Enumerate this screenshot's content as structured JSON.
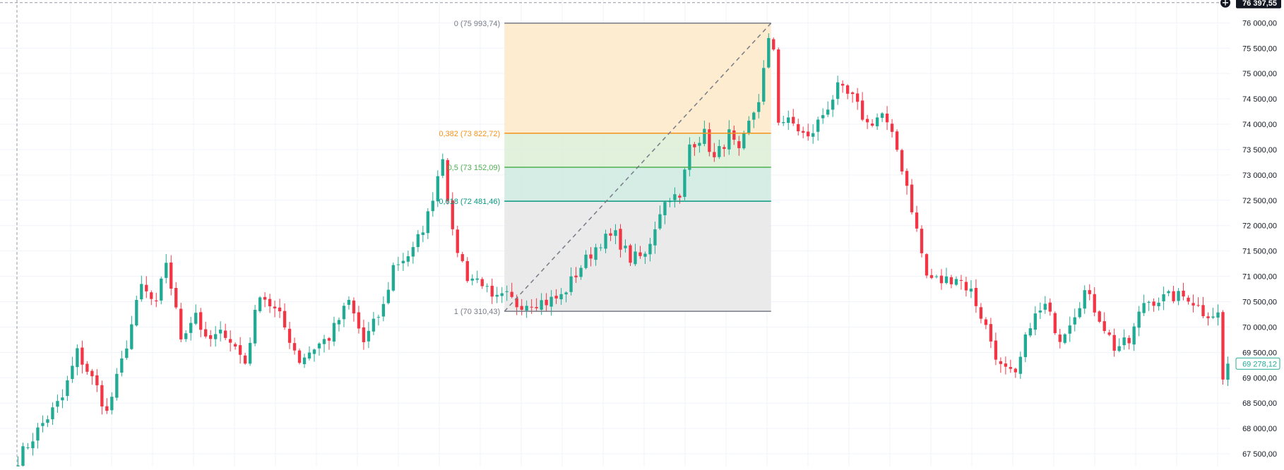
{
  "colors": {
    "up": "#22ab94",
    "down": "#f23645",
    "grid": "#f0f3fa",
    "axis_text": "#131722",
    "fib_0_fill": "#fde9c8",
    "fib_0382_fill": "#dcefd6",
    "fib_05_fill": "#cfeae2",
    "fib_0618_fill": "#e6e6e6",
    "fib_0382_line": "#f7931a",
    "fib_05_line": "#4caf50",
    "fib_0618_line": "#089981",
    "fib_edge_line": "#787b86",
    "crosshair": "#9598a1",
    "current_price_border": "#22ab94",
    "crosshair_label_bg": "#131722"
  },
  "chart_data": {
    "type": "candlestick",
    "y_axis": {
      "range": [
        67250,
        76450
      ],
      "ticks": [
        67500,
        68000,
        68500,
        69000,
        69500,
        70000,
        70500,
        71000,
        71500,
        72000,
        72500,
        73000,
        73500,
        74000,
        74500,
        75000,
        75500,
        76000
      ],
      "tick_labels": [
        "67 500,00",
        "68 000,00",
        "68 500,00",
        "69 000,00",
        "69 500,00",
        "70 000,00",
        "70 500,00",
        "71 000,00",
        "71 500,00",
        "72 000,00",
        "72 500,00",
        "73 000,00",
        "73 500,00",
        "74 000,00",
        "74 500,00",
        "75 000,00",
        "75 500,00",
        "76 000,00"
      ],
      "side": "right",
      "grid": true
    },
    "x_axis": {
      "bars": 246,
      "grid": true,
      "labels": []
    },
    "crosshair": {
      "price": 76397.55,
      "label": "76 397,55"
    },
    "current_price": {
      "price": 69278.12,
      "label": "69 278,12"
    },
    "fibonacci": {
      "start_bar": 99,
      "end_bar": 152,
      "levels": [
        {
          "ratio": 0,
          "price": 75993.74,
          "label": "0 (75 993,74)"
        },
        {
          "ratio": 0.382,
          "price": 73822.72,
          "label": "0,382 (73 822,72)"
        },
        {
          "ratio": 0.5,
          "price": 73152.09,
          "label": "0,5 (73 152,09)"
        },
        {
          "ratio": 0.618,
          "price": 72481.46,
          "label": "0,618 (72 481,46)"
        },
        {
          "ratio": 1,
          "price": 70310.43,
          "label": "1 (70 310,43)"
        }
      ]
    },
    "waypoints": [
      [
        0,
        67400
      ],
      [
        5,
        68100
      ],
      [
        9,
        68600
      ],
      [
        12,
        69500
      ],
      [
        16,
        68800
      ],
      [
        18,
        68300
      ],
      [
        21,
        69300
      ],
      [
        25,
        70800
      ],
      [
        28,
        70400
      ],
      [
        30,
        71300
      ],
      [
        33,
        69800
      ],
      [
        36,
        70300
      ],
      [
        38,
        69700
      ],
      [
        42,
        69900
      ],
      [
        46,
        69300
      ],
      [
        49,
        70700
      ],
      [
        53,
        70200
      ],
      [
        57,
        69350
      ],
      [
        60,
        69600
      ],
      [
        63,
        69800
      ],
      [
        67,
        70500
      ],
      [
        70,
        69700
      ],
      [
        74,
        70400
      ],
      [
        76,
        71200
      ],
      [
        80,
        71500
      ],
      [
        83,
        72200
      ],
      [
        86,
        73400
      ],
      [
        88,
        71800
      ],
      [
        91,
        71000
      ],
      [
        94,
        70900
      ],
      [
        96,
        70500
      ],
      [
        99,
        70600
      ],
      [
        101,
        70450
      ],
      [
        104,
        70500
      ],
      [
        107,
        70500
      ],
      [
        110,
        70600
      ],
      [
        114,
        71200
      ],
      [
        118,
        71700
      ],
      [
        121,
        71800
      ],
      [
        124,
        71350
      ],
      [
        127,
        71400
      ],
      [
        130,
        72300
      ],
      [
        132,
        72600
      ],
      [
        134,
        72500
      ],
      [
        136,
        73600
      ],
      [
        139,
        73800
      ],
      [
        141,
        73300
      ],
      [
        144,
        73800
      ],
      [
        146,
        73400
      ],
      [
        148,
        74000
      ],
      [
        150,
        74500
      ],
      [
        152,
        75600
      ],
      [
        153,
        75500
      ],
      [
        154,
        74100
      ],
      [
        157,
        74000
      ],
      [
        160,
        73700
      ],
      [
        163,
        74200
      ],
      [
        166,
        74700
      ],
      [
        169,
        74500
      ],
      [
        172,
        74000
      ],
      [
        175,
        74200
      ],
      [
        178,
        73500
      ],
      [
        180,
        72800
      ],
      [
        182,
        71900
      ],
      [
        184,
        71000
      ],
      [
        187,
        70900
      ],
      [
        190,
        71000
      ],
      [
        193,
        70700
      ],
      [
        196,
        70000
      ],
      [
        199,
        69200
      ],
      [
        202,
        69000
      ],
      [
        205,
        70100
      ],
      [
        208,
        70400
      ],
      [
        211,
        69800
      ],
      [
        214,
        70300
      ],
      [
        216,
        70700
      ],
      [
        219,
        70200
      ],
      [
        222,
        69600
      ],
      [
        225,
        69700
      ],
      [
        228,
        70500
      ],
      [
        231,
        70550
      ],
      [
        234,
        70600
      ],
      [
        237,
        70600
      ],
      [
        240,
        70300
      ],
      [
        243,
        70250
      ],
      [
        244,
        68950
      ],
      [
        246,
        69280
      ]
    ]
  }
}
